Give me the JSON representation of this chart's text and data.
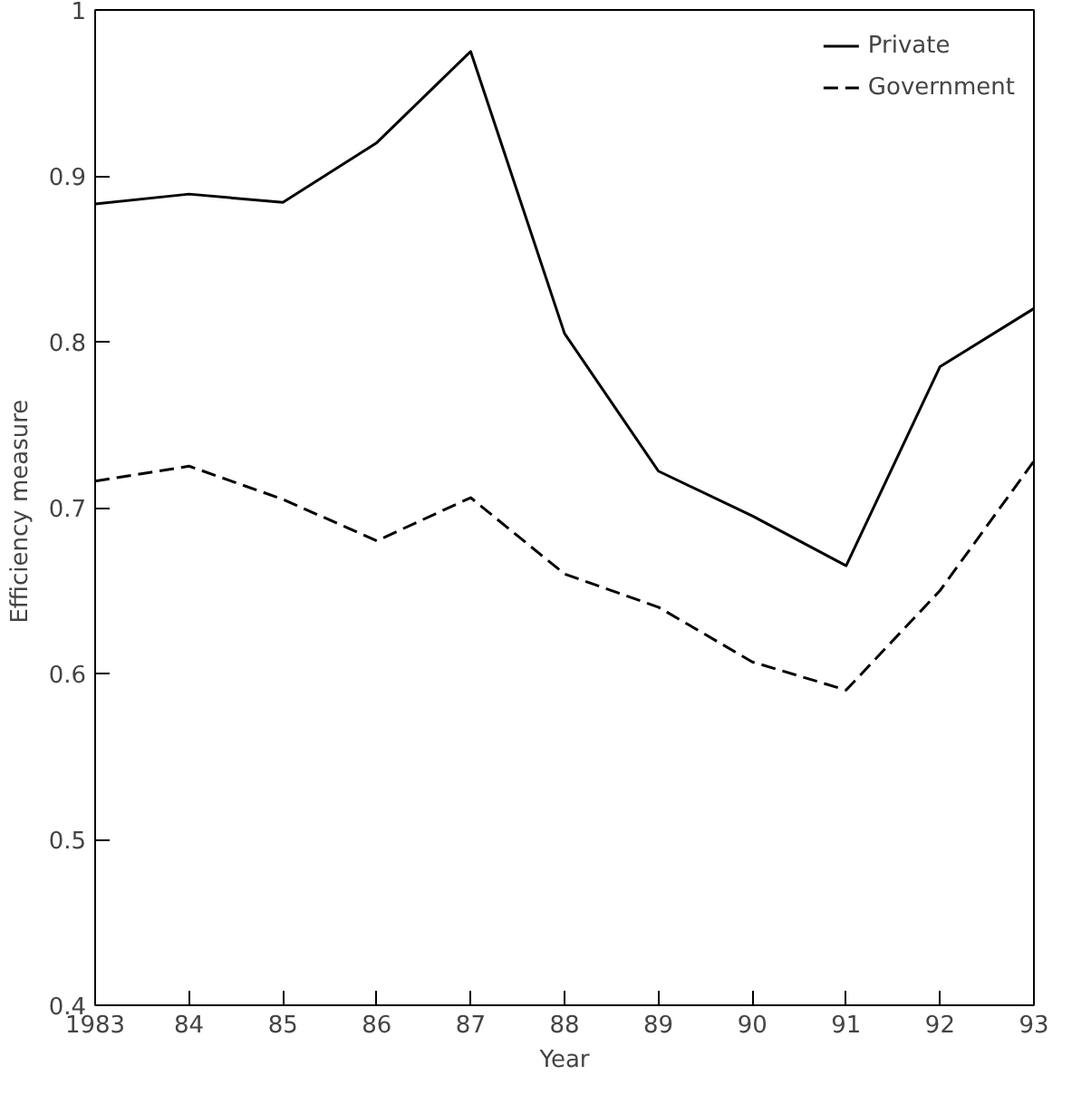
{
  "chart_data": {
    "type": "line",
    "xlabel": "Year",
    "ylabel": "Efficiency  measure",
    "x": [
      1983,
      1984,
      1985,
      1986,
      1987,
      1988,
      1989,
      1990,
      1991,
      1992,
      1993
    ],
    "series": [
      {
        "name": "Private",
        "color": "#000000",
        "line_style": "solid",
        "values": [
          0.883,
          0.889,
          0.884,
          0.92,
          0.975,
          0.805,
          0.722,
          0.695,
          0.665,
          0.785,
          0.82
        ]
      },
      {
        "name": "Government",
        "color": "#000000",
        "line_style": "dashed",
        "values": [
          0.716,
          0.725,
          0.705,
          0.68,
          0.706,
          0.66,
          0.64,
          0.607,
          0.59,
          0.65,
          0.728
        ]
      }
    ],
    "xlim": [
      1983,
      1993
    ],
    "xticks": [
      {
        "value": 1983,
        "label": "1983"
      },
      {
        "value": 1984,
        "label": "84"
      },
      {
        "value": 1985,
        "label": "85"
      },
      {
        "value": 1986,
        "label": "86"
      },
      {
        "value": 1987,
        "label": "87"
      },
      {
        "value": 1988,
        "label": "88"
      },
      {
        "value": 1989,
        "label": "89"
      },
      {
        "value": 1990,
        "label": "90"
      },
      {
        "value": 1991,
        "label": "91"
      },
      {
        "value": 1992,
        "label": "92"
      },
      {
        "value": 1993,
        "label": "93"
      }
    ],
    "ylim": [
      0.4,
      1
    ],
    "yticks": [
      {
        "value": 0.4,
        "label": "0.4"
      },
      {
        "value": 0.5,
        "label": "0.5"
      },
      {
        "value": 0.6,
        "label": "0.6"
      },
      {
        "value": 0.7,
        "label": "0.7"
      },
      {
        "value": 0.8,
        "label": "0.8"
      },
      {
        "value": 0.9,
        "label": "0.9"
      },
      {
        "value": 1,
        "label": "1"
      }
    ],
    "grid": false,
    "legend": "top right",
    "marker": "none"
  }
}
